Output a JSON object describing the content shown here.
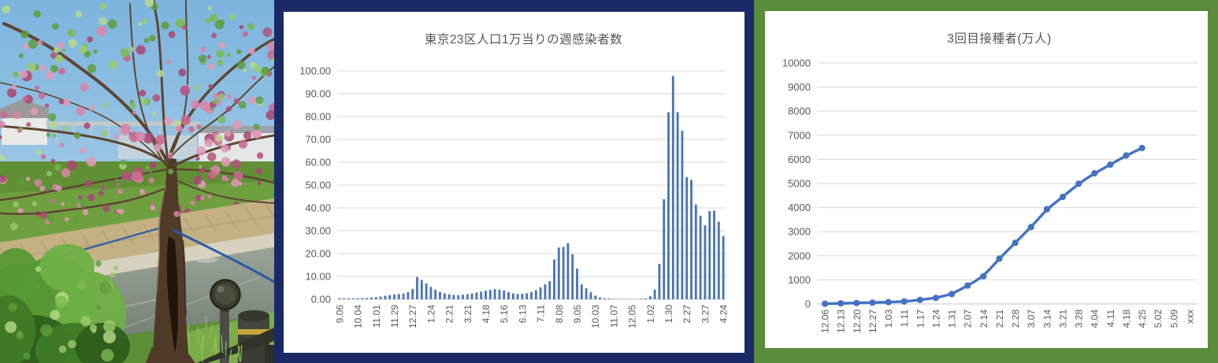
{
  "photo": {
    "alt": "Blossoming pink tree leaning over a concrete-lined canal, grassy banks, shrubs, a round-headed garden lamp and a bollard in the foreground",
    "palette": {
      "sky_top": "#7cb4de",
      "sky_bottom": "#bcdaee",
      "blossom": [
        "#c9688f",
        "#d884a8",
        "#b2537d",
        "#e09ab8",
        "#a84874"
      ],
      "leaf": [
        "#7cb84f",
        "#9bcb6b",
        "#5e9c3a",
        "#b9d98a"
      ],
      "grass_far": "#6fa03f",
      "grass_far_dark": "#55812e",
      "wall": "#c3b184",
      "wall_line": "#9f8f60",
      "ledge": "#d7d2c0",
      "water": "#9aa398",
      "water_dark": "#6f7a6f",
      "water_streak": "#c2c8bd",
      "grass_near": "#5d9036",
      "grass_near_light": "#7fb14c",
      "blade": "#8fc257",
      "shrub": [
        "#3f7a26",
        "#579934",
        "#6fb044",
        "#2e5e1c"
      ],
      "trunk": "#4f3b28",
      "trunk_dark": "#20150b",
      "trunk_light": "#907c5c",
      "branch": "#5c4632",
      "building": "#e9eae6",
      "roof": "#9a9a98",
      "fence": "#c6cac6",
      "cable": "#2b57a8",
      "lamp_head": "#3a3d31",
      "lamp_head_inner": "#4a4e3c",
      "lamp_post": "#4a4d45",
      "bollard": "#43463e",
      "bollard_cap": "#35382f",
      "bollard_band": "#c7a63b",
      "frame_dark": "#303328"
    }
  },
  "chart_data": [
    {
      "type": "bar",
      "title": "東京23区人口1万当りの週感染者数",
      "values": [
        0.4,
        0.4,
        0.4,
        0.4,
        0.4,
        0.5,
        0.5,
        0.7,
        0.9,
        1.2,
        1.5,
        1.8,
        2.1,
        2.3,
        2.5,
        3.1,
        4.5,
        9.7,
        8.4,
        6.9,
        5.4,
        4.2,
        3.2,
        2.6,
        2.2,
        1.9,
        1.8,
        2.0,
        2.2,
        2.5,
        2.9,
        3.3,
        3.7,
        4.1,
        4.4,
        4.2,
        3.8,
        3.1,
        2.6,
        2.3,
        2.4,
        2.6,
        3.1,
        4.0,
        5.2,
        6.5,
        7.9,
        17.4,
        22.6,
        22.9,
        24.6,
        19.7,
        13.4,
        6.5,
        4.8,
        3.1,
        1.6,
        0.8,
        0.4,
        0.3,
        0.2,
        0.1,
        0.1,
        0.1,
        0.1,
        0.1,
        0.2,
        0.3,
        1.3,
        4.2,
        15.5,
        43.8,
        81.9,
        97.8,
        81.9,
        73.8,
        53.5,
        52.3,
        41.5,
        36.5,
        32.3,
        38.6,
        38.8,
        34.0,
        27.7
      ],
      "x_tick_labels": [
        "9.06",
        "10.04",
        "11.01",
        "11.29",
        "12.27",
        "1.24",
        "2.21",
        "3.21",
        "4.18",
        "5.16",
        "6.13",
        "7.11",
        "8.08",
        "9.05",
        "10.03",
        "11.07",
        "12.05",
        "1.02",
        "1.30",
        "2.27",
        "3.27",
        "4.24"
      ],
      "x_tick_interval": 4,
      "y_tick_labels": [
        "100.00",
        "90.00",
        "80.00",
        "70.00",
        "60.00",
        "50.00",
        "40.00",
        "30.00",
        "20.00",
        "10.00",
        "0.00"
      ],
      "ylim": [
        0,
        100
      ],
      "grid": true,
      "legend": "none",
      "bar_color": "#4a73b3",
      "grid_color": "#d9d9d9",
      "axis_color": "#c6c6c6",
      "frame_color": "#1b2a66"
    },
    {
      "type": "line",
      "title": "3回目接種者(万人)",
      "categories": [
        "12.06",
        "12.13",
        "12.20",
        "12.27",
        "1.03",
        "1.11",
        "1.17",
        "1.24",
        "1.31",
        "2.07",
        "2.14",
        "2.21",
        "2.28",
        "3.07",
        "3.14",
        "3.21",
        "3.28",
        "4.04",
        "4.11",
        "4.18",
        "4.25",
        "5.02",
        "5.09",
        "xxx"
      ],
      "values": [
        10,
        25,
        40,
        55,
        75,
        100,
        170,
        250,
        410,
        760,
        1150,
        1880,
        2540,
        3190,
        3930,
        4440,
        4990,
        5420,
        5780,
        6160,
        6470
      ],
      "y_tick_labels": [
        "10000",
        "9000",
        "8000",
        "7000",
        "6000",
        "5000",
        "4000",
        "3000",
        "2000",
        "1000",
        "0"
      ],
      "ylim": [
        0,
        10000
      ],
      "grid": true,
      "legend": "none",
      "line_color": "#4472c4",
      "marker": "circle",
      "grid_color": "#d9d9d9",
      "axis_color": "#c6c6c6",
      "frame_color": "#5a8c3c"
    }
  ]
}
